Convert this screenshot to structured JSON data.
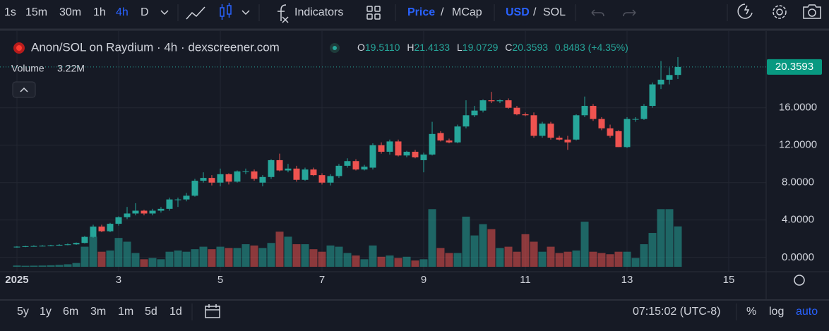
{
  "toolbar": {
    "intervals": [
      "1s",
      "15m",
      "30m",
      "1h",
      "4h",
      "D"
    ],
    "indicators": "Indicators",
    "price": "Price",
    "separator": "/",
    "mcap": "MCap",
    "usd": "USD",
    "sol": "SOL"
  },
  "legend": {
    "title": "Anon/SOL on Raydium · 4h · dexscreener.com",
    "o_label": "O",
    "o": "19.5110",
    "h_label": "H",
    "h": "21.4133",
    "l_label": "L",
    "l": "19.0729",
    "c_label": "C",
    "c": "20.3593",
    "change": "0.8483 (+4.35%)",
    "volume_label": "Volume",
    "volume": "3.22M"
  },
  "chart_data": {
    "type": "candlestick",
    "x": [
      1.0,
      1.167,
      1.333,
      1.5,
      1.667,
      1.833,
      2.0,
      2.167,
      2.333,
      2.5,
      2.667,
      2.833,
      3.0,
      3.167,
      3.333,
      3.5,
      3.667,
      3.833,
      4.0,
      4.167,
      4.333,
      4.5,
      4.667,
      4.833,
      5.0,
      5.167,
      5.333,
      5.5,
      5.667,
      5.833,
      6.0,
      6.167,
      6.333,
      6.5,
      6.667,
      6.833,
      7.0,
      7.167,
      7.333,
      7.5,
      7.667,
      7.833,
      8.0,
      8.167,
      8.333,
      8.5,
      8.667,
      8.833,
      9.0,
      9.167,
      9.333,
      9.5,
      9.667,
      9.833,
      10.0,
      10.167,
      10.333,
      10.5,
      10.667,
      10.833,
      11.0,
      11.167,
      11.333,
      11.5,
      11.667,
      11.833,
      12.0,
      12.167,
      12.333,
      12.5,
      12.667,
      12.833,
      13.0,
      13.167,
      13.333,
      13.5,
      13.667,
      13.833,
      14.0
    ],
    "open": [
      1.1,
      1.15,
      1.2,
      1.22,
      1.25,
      1.3,
      1.35,
      1.4,
      1.55,
      2.2,
      3.3,
      2.8,
      3.6,
      4.3,
      4.7,
      5.0,
      4.7,
      5.0,
      5.2,
      6.2,
      6.2,
      6.6,
      8.2,
      8.5,
      8.0,
      8.9,
      8.1,
      9.2,
      9.2,
      8.0,
      8.6,
      10.4,
      9.3,
      9.5,
      8.3,
      9.4,
      8.8,
      8.0,
      8.7,
      9.8,
      10.3,
      9.4,
      9.6,
      12.0,
      11.3,
      12.4,
      10.9,
      11.3,
      10.4,
      11.0,
      13.3,
      12.5,
      12.3,
      14.0,
      15.2,
      15.7,
      16.8,
      16.7,
      16.8,
      16.0,
      15.3,
      15.2,
      13.0,
      14.3,
      12.8,
      12.6,
      12.6,
      15.2,
      16.2,
      14.8,
      13.8,
      13.5,
      11.8,
      14.8,
      14.8,
      16.2,
      18.5,
      19.0,
      19.511
    ],
    "high": [
      1.2,
      1.25,
      1.3,
      1.32,
      1.35,
      1.42,
      1.5,
      1.6,
      2.3,
      3.5,
      3.5,
      3.7,
      4.4,
      5.4,
      5.8,
      5.1,
      5.2,
      5.4,
      6.4,
      6.4,
      6.9,
      8.4,
      9.1,
      8.8,
      9.5,
      9.0,
      9.3,
      9.5,
      9.4,
      8.8,
      10.5,
      11.1,
      10.0,
      9.8,
      9.6,
      9.6,
      9.0,
      8.9,
      10.0,
      10.6,
      10.5,
      9.9,
      12.2,
      12.3,
      12.6,
      12.6,
      11.4,
      11.5,
      11.2,
      14.5,
      13.5,
      12.7,
      14.2,
      16.8,
      16.2,
      16.9,
      17.7,
      16.9,
      17.0,
      16.2,
      15.5,
      15.5,
      14.5,
      14.5,
      13.0,
      13.0,
      15.3,
      17.2,
      16.4,
      15.0,
      14.2,
      13.6,
      15.0,
      15.0,
      16.4,
      18.7,
      21.0,
      20.3,
      21.4133
    ],
    "low": [
      1.05,
      1.1,
      1.15,
      1.18,
      1.2,
      1.25,
      1.3,
      1.35,
      1.5,
      2.1,
      2.7,
      2.7,
      3.4,
      4.1,
      4.5,
      4.5,
      4.5,
      4.8,
      5.0,
      5.4,
      6.0,
      6.5,
      8.0,
      7.7,
      7.6,
      7.8,
      8.0,
      8.9,
      8.2,
      7.6,
      8.4,
      9.2,
      9.1,
      8.1,
      8.2,
      8.7,
      7.8,
      7.7,
      8.5,
      9.6,
      9.3,
      9.3,
      9.4,
      11.1,
      11.0,
      10.8,
      10.7,
      10.6,
      9.1,
      10.9,
      12.4,
      12.2,
      12.2,
      13.8,
      15.0,
      15.5,
      16.5,
      16.5,
      15.9,
      15.2,
      15.1,
      12.8,
      12.8,
      12.6,
      12.5,
      11.5,
      12.5,
      15.0,
      14.6,
      13.6,
      12.8,
      11.8,
      11.7,
      14.5,
      14.7,
      16.0,
      18.0,
      18.5,
      19.0729
    ],
    "close": [
      1.15,
      1.2,
      1.22,
      1.25,
      1.3,
      1.35,
      1.4,
      1.55,
      2.2,
      3.3,
      2.8,
      3.6,
      4.3,
      4.7,
      5.0,
      4.7,
      5.0,
      5.2,
      6.2,
      6.2,
      6.6,
      8.2,
      8.5,
      8.0,
      8.9,
      8.1,
      9.2,
      9.2,
      8.4,
      8.6,
      10.4,
      9.3,
      9.5,
      8.3,
      9.4,
      8.8,
      8.0,
      8.7,
      9.8,
      10.3,
      9.4,
      9.7,
      12.0,
      11.3,
      12.4,
      10.9,
      11.3,
      10.7,
      11.0,
      13.2,
      12.5,
      12.3,
      14.0,
      15.2,
      15.7,
      16.8,
      16.7,
      16.8,
      16.0,
      15.3,
      15.2,
      13.0,
      14.3,
      12.8,
      12.6,
      12.3,
      15.2,
      16.2,
      14.8,
      13.8,
      13.0,
      11.8,
      14.8,
      14.8,
      16.2,
      18.5,
      19.0,
      19.5,
      20.3593
    ],
    "volume": [
      0.1,
      0.08,
      0.09,
      0.1,
      0.12,
      0.15,
      0.2,
      0.3,
      1.6,
      2.4,
      1.2,
      1.3,
      2.3,
      2.0,
      1.1,
      0.6,
      0.7,
      0.6,
      1.2,
      1.3,
      1.2,
      1.4,
      1.6,
      1.4,
      1.6,
      1.5,
      1.5,
      1.8,
      1.7,
      1.5,
      1.9,
      2.8,
      2.4,
      1.8,
      1.8,
      1.4,
      1.2,
      1.7,
      1.6,
      1.1,
      0.9,
      0.6,
      1.7,
      0.8,
      0.9,
      0.7,
      0.8,
      0.5,
      0.6,
      4.6,
      1.5,
      1.1,
      1.1,
      4.0,
      2.5,
      3.4,
      3.0,
      1.5,
      1.6,
      1.2,
      2.6,
      2.0,
      1.2,
      1.6,
      1.1,
      1.2,
      1.3,
      3.6,
      1.2,
      1.1,
      1.0,
      1.2,
      1.2,
      0.7,
      1.8,
      2.7,
      4.6,
      4.6,
      3.22
    ],
    "up_color": "#26a69a",
    "down_color": "#ef5350",
    "xlim": [
      0.667,
      15.736
    ],
    "xticks": [
      {
        "value": 1,
        "label": "2025"
      },
      3,
      5,
      7,
      9,
      11,
      13,
      15
    ],
    "ylim": [
      -1.6,
      24.2
    ],
    "yticks": [
      {
        "value": 0,
        "label": "0.0000"
      },
      {
        "value": 4,
        "label": "4.0000"
      },
      {
        "value": 8,
        "label": "8.0000"
      },
      {
        "value": 12,
        "label": "12.0000"
      },
      {
        "value": 16,
        "label": "16.0000"
      }
    ],
    "volume_ylim": [
      0,
      5.8
    ],
    "grid": true
  },
  "footer": {
    "ranges": [
      "5y",
      "1y",
      "6m",
      "3m",
      "1m",
      "5d",
      "1d"
    ],
    "time": "07:15:02 (UTC-8)",
    "percent": "%",
    "log": "log",
    "auto": "auto"
  }
}
